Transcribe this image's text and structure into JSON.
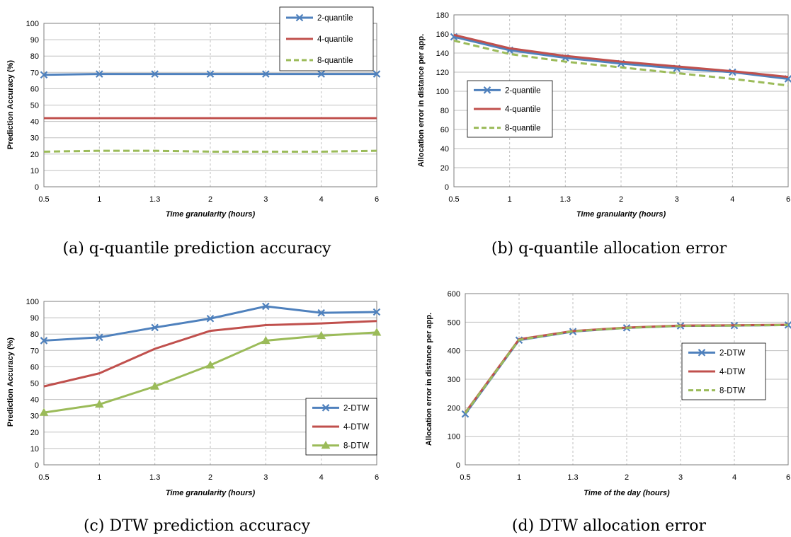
{
  "colors": {
    "blue": "#4f81bd",
    "red": "#c0504d",
    "green": "#9bbb59",
    "grid": "#bfbfbf",
    "frame": "#7f7f7f"
  },
  "chart_data": [
    {
      "id": "a",
      "type": "line",
      "caption": "(a) q-quantile prediction accuracy",
      "categories": [
        "0.5",
        "1",
        "1.3",
        "2",
        "3",
        "4",
        "6"
      ],
      "xlabel": "Time granularity (hours)",
      "ylabel": "Prediction Accuracy (%)",
      "ylim": [
        0,
        100
      ],
      "yticks": [
        0,
        10,
        20,
        30,
        40,
        50,
        60,
        70,
        80,
        90,
        100
      ],
      "grid": true,
      "legend": "top-right",
      "series": [
        {
          "name": "2-quantile",
          "color": "#4f81bd",
          "dash": false,
          "marker": "x",
          "values": [
            68.5,
            69,
            69,
            69,
            69,
            69,
            69
          ]
        },
        {
          "name": "4-quantile",
          "color": "#c0504d",
          "dash": false,
          "marker": "none",
          "values": [
            42,
            42,
            42,
            42,
            42,
            42,
            42
          ]
        },
        {
          "name": "8-quantile",
          "color": "#9bbb59",
          "dash": true,
          "marker": "none",
          "values": [
            21.5,
            22,
            22,
            21.5,
            21.5,
            21.5,
            22
          ]
        }
      ]
    },
    {
      "id": "b",
      "type": "line",
      "caption": "(b) q-quantile allocation error",
      "categories": [
        "0.5",
        "1",
        "1.3",
        "2",
        "3",
        "4",
        "6"
      ],
      "xlabel": "Time granularity (hours)",
      "ylabel": "Allocation error in distance per app.",
      "ylim": [
        0,
        180
      ],
      "yticks": [
        0,
        20,
        40,
        60,
        80,
        100,
        120,
        140,
        160,
        180
      ],
      "grid": true,
      "legend": "middle-left",
      "series": [
        {
          "name": "2-quantile",
          "color": "#4f81bd",
          "dash": false,
          "marker": "x",
          "values": [
            157,
            143,
            135,
            129,
            124,
            120,
            113
          ]
        },
        {
          "name": "4-quantile",
          "color": "#c0504d",
          "dash": false,
          "marker": "none",
          "values": [
            159,
            145,
            137,
            131,
            126,
            121,
            115
          ]
        },
        {
          "name": "8-quantile",
          "color": "#9bbb59",
          "dash": true,
          "marker": "none",
          "values": [
            153,
            139,
            131,
            125,
            119,
            113,
            106
          ]
        }
      ]
    },
    {
      "id": "c",
      "type": "line",
      "caption": "(c) DTW prediction accuracy",
      "categories": [
        "0.5",
        "1",
        "1.3",
        "2",
        "3",
        "4",
        "6"
      ],
      "xlabel": "Time granularity (hours)",
      "ylabel": "Prediction Accuracy (%)",
      "ylim": [
        0,
        100
      ],
      "yticks": [
        0,
        10,
        20,
        30,
        40,
        50,
        60,
        70,
        80,
        90,
        100
      ],
      "grid": true,
      "legend": "bottom-right",
      "series": [
        {
          "name": "2-DTW",
          "color": "#4f81bd",
          "dash": false,
          "marker": "x",
          "values": [
            76,
            78,
            84,
            89.5,
            97,
            93,
            93.5
          ]
        },
        {
          "name": "4-DTW",
          "color": "#c0504d",
          "dash": false,
          "marker": "none",
          "values": [
            48,
            56,
            71,
            82,
            85.5,
            86.5,
            88
          ]
        },
        {
          "name": "8-DTW",
          "color": "#9bbb59",
          "dash": false,
          "marker": "triangle",
          "values": [
            32,
            37,
            48,
            61,
            76,
            79,
            81
          ]
        }
      ]
    },
    {
      "id": "d",
      "type": "line",
      "caption": "(d) DTW allocation error",
      "categories": [
        "0.5",
        "1",
        "1.3",
        "2",
        "3",
        "4",
        "6"
      ],
      "xlabel": "Time of the day (hours)",
      "ylabel": "Allocation error in distance per app.",
      "ylim": [
        0,
        600
      ],
      "yticks": [
        0,
        100,
        200,
        300,
        400,
        500,
        600
      ],
      "grid": true,
      "legend": "middle-right",
      "series": [
        {
          "name": "2-DTW",
          "color": "#4f81bd",
          "dash": false,
          "marker": "x",
          "values": [
            178,
            437,
            467,
            480,
            487,
            488,
            490
          ]
        },
        {
          "name": "4-DTW",
          "color": "#c0504d",
          "dash": false,
          "marker": "none",
          "values": [
            183,
            440,
            469,
            481,
            488,
            489,
            491
          ]
        },
        {
          "name": "8-DTW",
          "color": "#9bbb59",
          "dash": true,
          "marker": "none",
          "values": [
            181,
            438,
            468,
            480,
            487,
            488,
            490
          ]
        }
      ]
    }
  ]
}
